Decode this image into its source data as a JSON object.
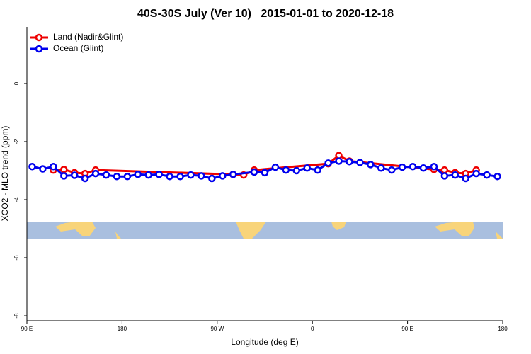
{
  "chart_data": {
    "type": "line",
    "title": "40S-30S July (Ver 10)   2015-01-01 to 2020-12-18",
    "x_label": "Longitude (deg E)",
    "y_label": "XCO2 - MLO trend (ppm)",
    "xlim": [
      90,
      540
    ],
    "ylim": [
      -8.17,
      1.95
    ],
    "xticks": [
      {
        "value": 90,
        "label": "90 E"
      },
      {
        "value": 180,
        "label": "180"
      },
      {
        "value": 270,
        "label": "90 W"
      },
      {
        "value": 360,
        "label": "0"
      },
      {
        "value": 450,
        "label": "90 E"
      },
      {
        "value": 540,
        "label": "180"
      }
    ],
    "yticks": [
      0,
      -2,
      -4,
      -6,
      -8
    ],
    "legend": "top-left",
    "series": [
      {
        "name": "Land (Nadir&Glint)",
        "color": "#ee0000",
        "x": [
          115,
          125,
          135,
          145,
          155,
          285,
          295,
          305,
          375,
          385,
          395,
          475,
          485,
          495,
          505,
          515
        ],
        "values": [
          -2.98,
          -2.96,
          -3.07,
          -3.1,
          -2.98,
          -3.13,
          -3.15,
          -2.98,
          -2.76,
          -2.48,
          -2.67,
          -2.96,
          -2.98,
          -3.07,
          -3.1,
          -2.98
        ]
      },
      {
        "name": "Ocean (Glint)",
        "color": "#0000ee",
        "x": [
          95,
          105,
          115,
          125,
          135,
          145,
          155,
          165,
          175,
          185,
          195,
          205,
          215,
          225,
          235,
          245,
          255,
          265,
          275,
          285,
          305,
          315,
          325,
          335,
          345,
          355,
          365,
          375,
          385,
          395,
          405,
          415,
          425,
          435,
          445,
          455,
          465,
          475,
          485,
          495,
          505,
          515,
          525,
          535
        ],
        "values": [
          -2.86,
          -2.94,
          -2.86,
          -3.18,
          -3.16,
          -3.27,
          -3.1,
          -3.15,
          -3.2,
          -3.2,
          -3.13,
          -3.15,
          -3.13,
          -3.2,
          -3.2,
          -3.15,
          -3.18,
          -3.27,
          -3.18,
          -3.13,
          -3.05,
          -3.07,
          -2.88,
          -2.98,
          -3.0,
          -2.91,
          -2.98,
          -2.74,
          -2.67,
          -2.69,
          -2.72,
          -2.79,
          -2.91,
          -2.98,
          -2.88,
          -2.86,
          -2.91,
          -2.86,
          -3.18,
          -3.15,
          -3.27,
          -3.1,
          -3.15,
          -3.2
        ]
      }
    ]
  }
}
